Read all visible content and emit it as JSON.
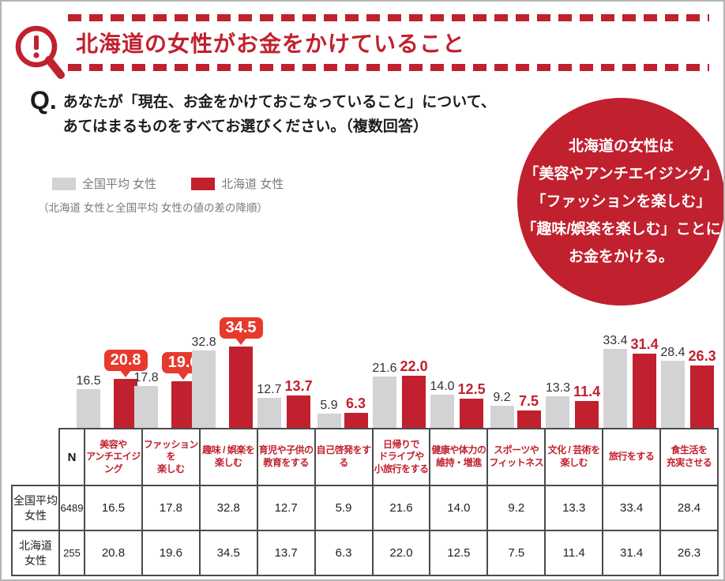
{
  "header": {
    "title": "北海道の女性がお金をかけていること"
  },
  "question": {
    "prefix": "Q.",
    "line1": "あなたが「現在、お金をかけておこなっていること」について、",
    "line2": "あてはまるものをすべてお選びください。（複数回答）"
  },
  "legend": {
    "national_label": "全国平均 女性",
    "hokkaido_label": "北海道 女性",
    "note": "（北海道 女性と全国平均 女性の値の差の降順）"
  },
  "callout_circle": {
    "lines": [
      "北海道の女性は",
      "「美容やアンチエイジング」",
      "「ファッションを楽しむ」",
      "「趣味/娯楽を楽しむ」ことに",
      "お金をかける。"
    ]
  },
  "colors": {
    "deep_red": "#c1202e",
    "bubble_red": "#e7392d",
    "bar_gray": "#d3d3d5",
    "text_gray": "#7a7a7a",
    "table_border": "#4b4b4b"
  },
  "chart_data": {
    "type": "bar",
    "title": "北海道の女性がお金をかけていること",
    "categories": [
      "美容や\nアンチエイジング",
      "ファッションを\n楽しむ",
      "趣味 / 娯楽を\n楽しむ",
      "育児や子供の\n教育をする",
      "自己啓発をする",
      "日帰りで\nドライブや\n小旅行をする",
      "健康や体力の\n維持・増進",
      "スポーツや\nフィットネス",
      "文化 / 芸術を\n楽しむ",
      "旅行をする",
      "食生活を\n充実させる"
    ],
    "series": [
      {
        "name": "全国平均 女性",
        "n": "6489",
        "values": [
          16.5,
          17.8,
          32.8,
          12.7,
          5.9,
          21.6,
          14.0,
          9.2,
          13.3,
          33.4,
          28.4
        ],
        "labels": [
          "16.5",
          "17.8",
          "32.8",
          "12.7",
          "5.9",
          "21.6",
          "14.0",
          "9.2",
          "13.3",
          "33.4",
          "28.4"
        ]
      },
      {
        "name": "北海道 女性",
        "n": "255",
        "values": [
          20.8,
          19.6,
          34.5,
          13.7,
          6.3,
          22.0,
          12.5,
          7.5,
          11.4,
          31.4,
          26.3
        ],
        "labels": [
          "20.8",
          "19.6",
          "34.5",
          "13.7",
          "6.3",
          "22.0",
          "12.5",
          "7.5",
          "11.4",
          "31.4",
          "26.3"
        ]
      }
    ],
    "callout_indices": [
      0,
      1,
      2
    ],
    "ylim": [
      0,
      40
    ],
    "grid": false,
    "legend_position": "top-left",
    "table": {
      "n_header": "N",
      "row_labels": [
        "全国平均\n女性",
        "北海道\n女性"
      ]
    }
  }
}
